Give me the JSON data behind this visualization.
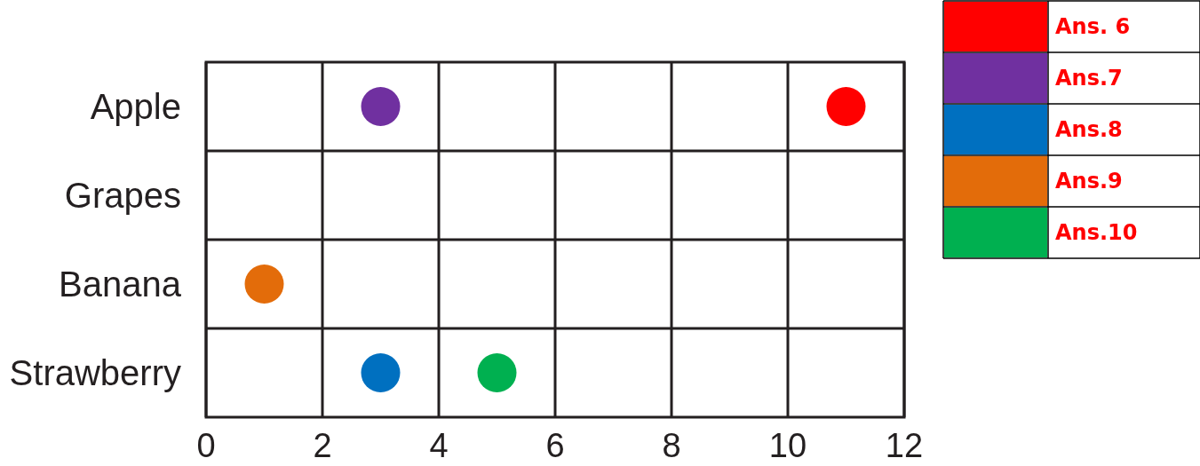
{
  "chart_data": {
    "type": "scatter",
    "orientation": "horizontal",
    "categories": [
      "Apple",
      "Grapes",
      "Banana",
      "Strawberry"
    ],
    "xlim": [
      0,
      12
    ],
    "xticks": [
      0,
      2,
      4,
      6,
      8,
      10,
      12
    ],
    "grid": true,
    "legend": "top right",
    "marker": "circle",
    "series": [
      {
        "name": "Ans. 6",
        "color": "#ff0000",
        "values": [
          11,
          null,
          null,
          null
        ]
      },
      {
        "name": "Ans.7",
        "color": "#7030a0",
        "values": [
          3,
          null,
          null,
          null
        ]
      },
      {
        "name": "Ans.8",
        "color": "#0070c0",
        "values": [
          null,
          null,
          null,
          3
        ]
      },
      {
        "name": "Ans.9",
        "color": "#e36c0a",
        "values": [
          null,
          null,
          1,
          null
        ]
      },
      {
        "name": "Ans.10",
        "color": "#00b050",
        "values": [
          null,
          null,
          null,
          5
        ]
      }
    ]
  }
}
